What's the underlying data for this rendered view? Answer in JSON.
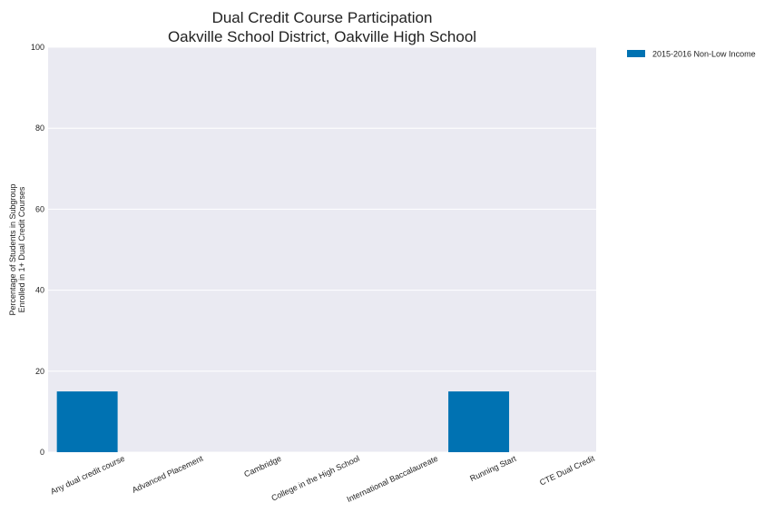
{
  "chart_data": {
    "type": "bar",
    "title": [
      "Dual Credit Course Participation",
      "Oakville School District, Oakville High School"
    ],
    "ylabel": [
      "Percentage of Students in Subgroup",
      "Enrolled in 1+ Dual Credit Courses"
    ],
    "xlabel": "",
    "categories": [
      "Any dual credit course",
      "Advanced Placement",
      "Cambridge",
      "College in the High School",
      "International Baccalaureate",
      "Running Start",
      "CTE Dual Credit"
    ],
    "series": [
      {
        "name": "2015-2016 Non-Low Income",
        "values": [
          15,
          0,
          0,
          0,
          0,
          15,
          0
        ],
        "color": "#0072b2"
      }
    ],
    "ylim": [
      0,
      100
    ],
    "yticks": [
      "0",
      "20",
      "40",
      "60",
      "80",
      "100"
    ],
    "grid": true,
    "legend_position": "outside-top-right",
    "background_color": "#eaeaf2"
  }
}
